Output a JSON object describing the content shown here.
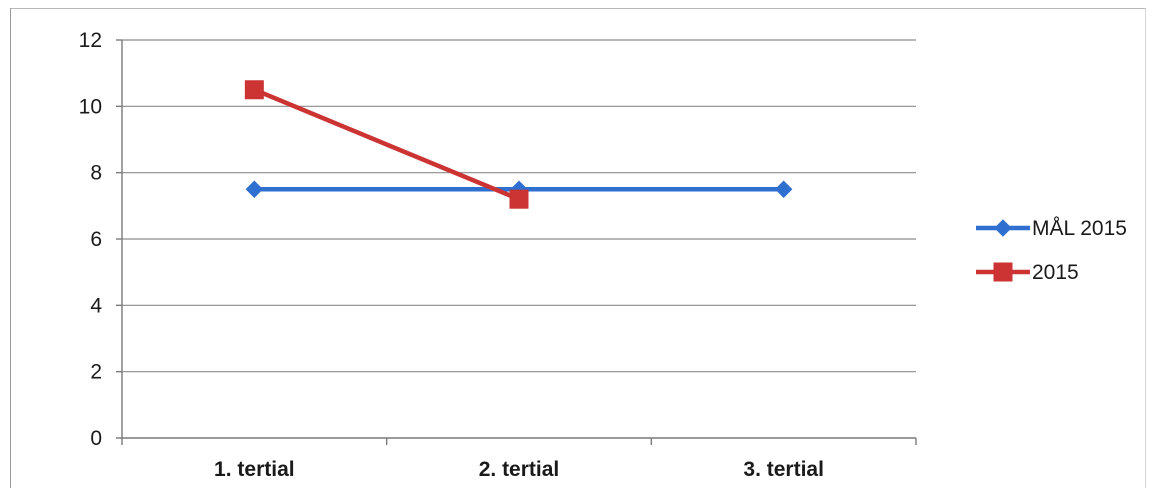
{
  "chart_data": {
    "type": "line",
    "title": "",
    "xlabel": "",
    "ylabel": "",
    "categories": [
      "1. tertial",
      "2. tertial",
      "3. tertial"
    ],
    "ylim": [
      0,
      12
    ],
    "yticks": [
      0,
      2,
      4,
      6,
      8,
      10,
      12
    ],
    "grid": true,
    "legend_position": "right",
    "series": [
      {
        "name": "MÅL 2015",
        "values": [
          7.5,
          7.5,
          7.5
        ],
        "color": "#2f6fd0",
        "marker": "diamond"
      },
      {
        "name": "2015",
        "values": [
          10.5,
          7.2,
          null
        ],
        "color": "#cc3333",
        "marker": "square"
      }
    ]
  }
}
